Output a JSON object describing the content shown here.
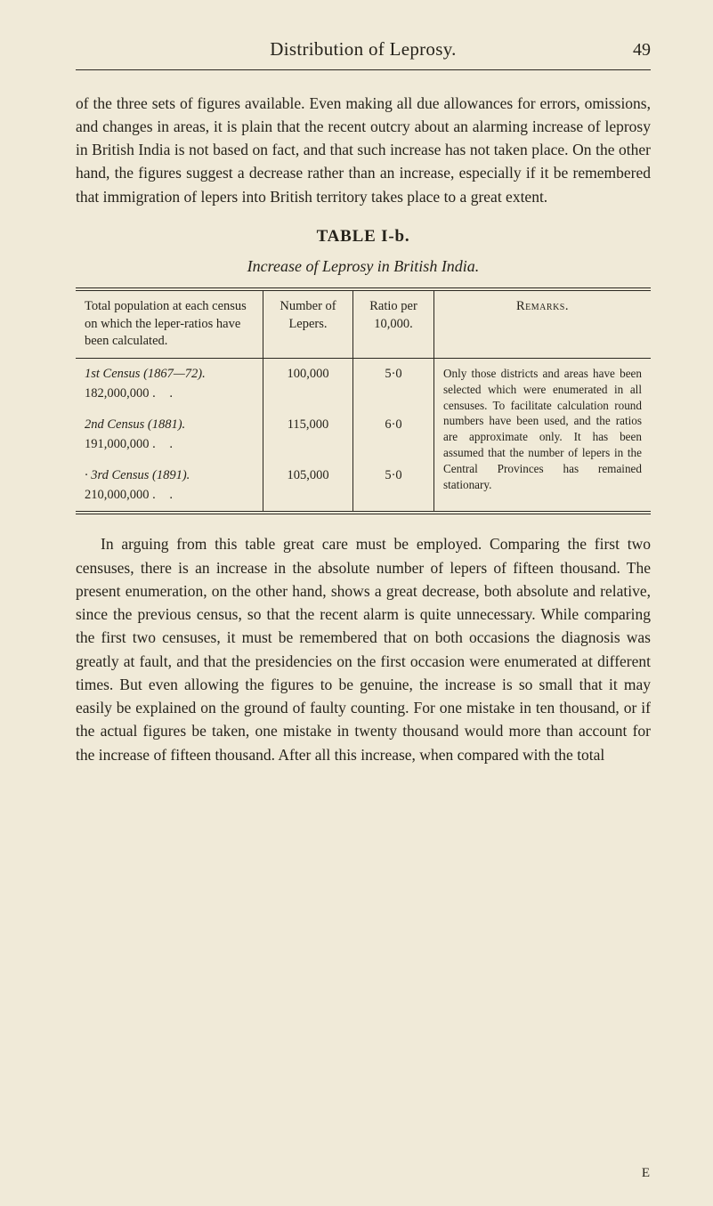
{
  "header": {
    "running_title": "Distribution of Leprosy.",
    "page_number": "49"
  },
  "para1": "of the three sets of figures available. Even making all due allowances for errors, omissions, and changes in areas, it is plain that the recent outcry about an alarming increase of leprosy in British India is not based on fact, and that such increase has not taken place. On the other hand, the figures suggest a decrease rather than an increase, especially if it be remembered that immigration of lepers into British territory takes place to a great extent.",
  "table": {
    "label": "TABLE  I-b.",
    "caption": "Increase of Leprosy in British India.",
    "columns": [
      "Total population at each census on which the leper-ratios have been calculated.",
      "Number of Lepers.",
      "Ratio per 10,000.",
      "Remarks."
    ],
    "rows": [
      {
        "census": "1st Census (1867—72).",
        "pop": "182,000,000",
        "lepers": "100,000",
        "ratio": "5·0"
      },
      {
        "census": "2nd Census (1881).",
        "pop": "191,000,000",
        "lepers": "115,000",
        "ratio": "6·0"
      },
      {
        "census": "· 3rd Census (1891).",
        "pop": "210,000,000",
        "lepers": "105,000",
        "ratio": "5·0"
      }
    ],
    "remarks": "Only those districts and areas have been selected which were enumerated in all censuses. To facilitate calculation round numbers have been used, and the ratios are approximate only. It has been assumed that the number of lepers in the Central Provinces has remained stationary.",
    "dots": ".  ."
  },
  "para2": "In arguing from this table great care must be employed. Comparing the first two censuses, there is an increase in the absolute number of lepers of fifteen thousand. The present enumeration, on the other hand, shows a great decrease, both absolute and relative, since the previous census, so that the recent alarm is quite unnecessary. While comparing the first two censuses, it must be remembered that on both occasions the diagnosis was greatly at fault, and that the presidencies on the first occasion were enumerated at different times. But even allowing the figures to be genuine, the increase is so small that it may easily be explained on the ground of faulty counting. For one mistake in ten thousand, or if the actual figures be taken, one mistake in twenty thousand would more than account for the increase of fifteen thousand. After all this increase, when compared with the total",
  "sig_mark": "E"
}
